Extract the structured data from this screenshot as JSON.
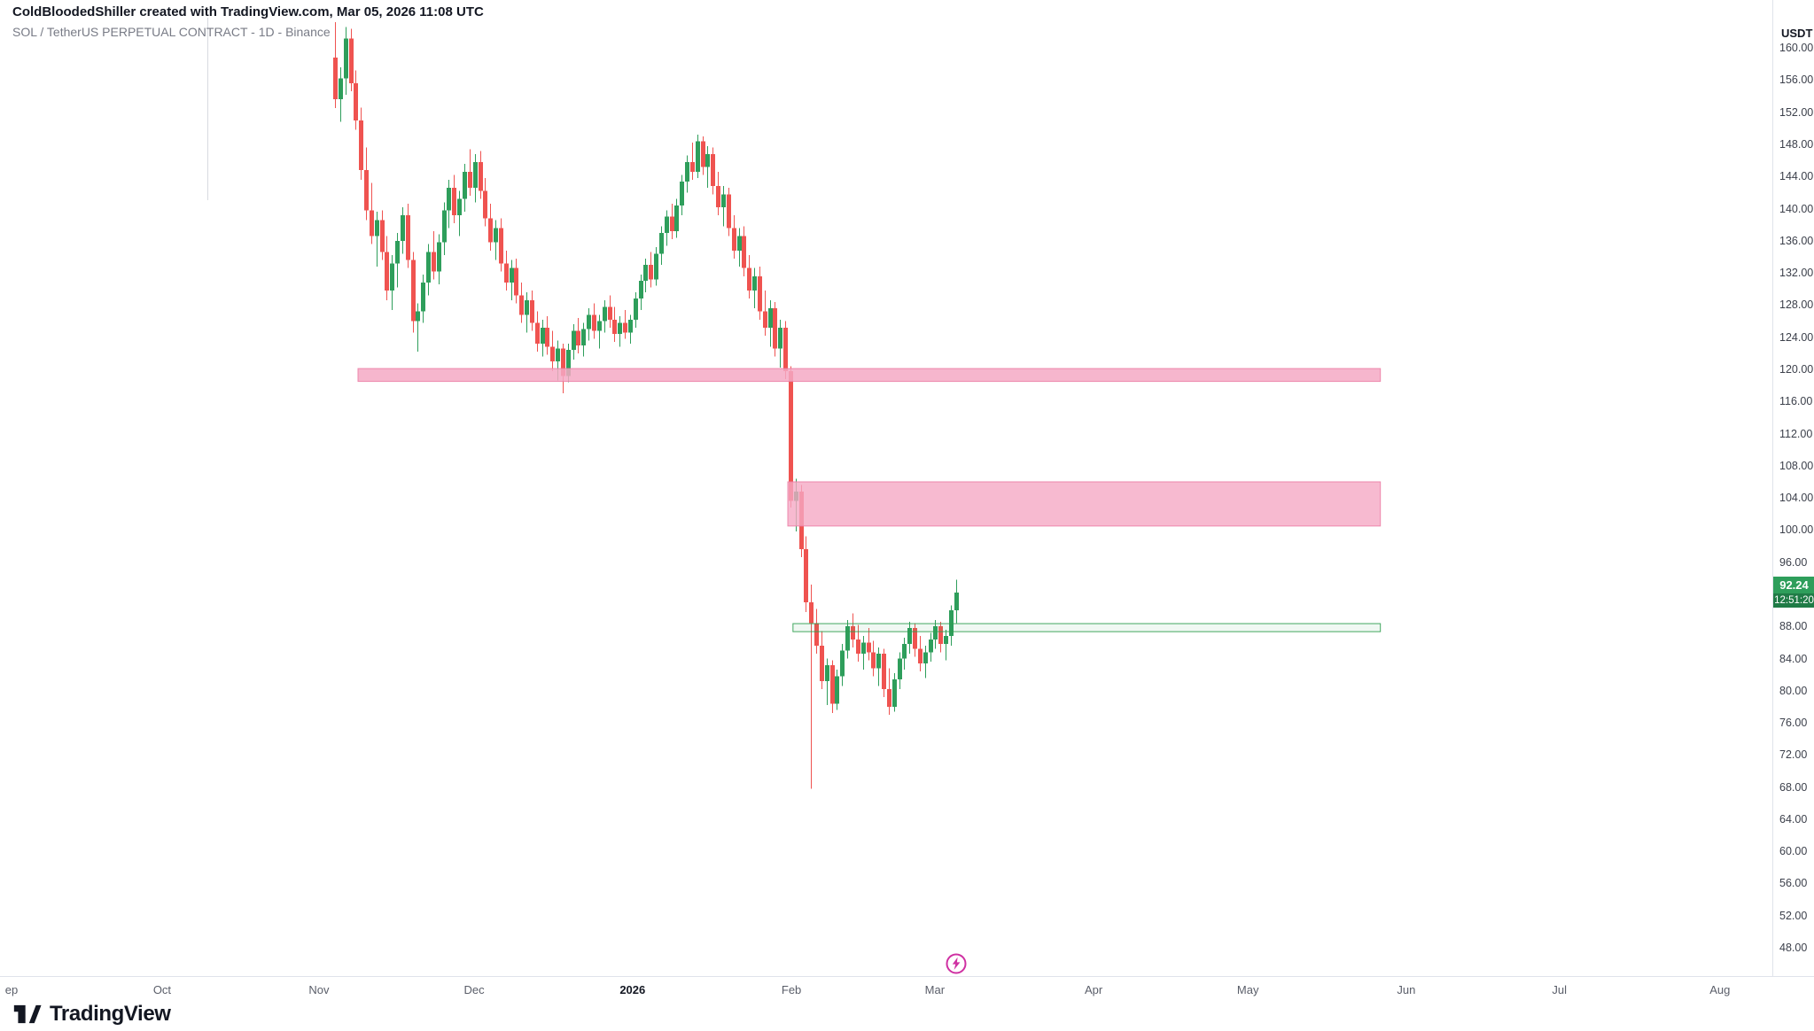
{
  "header": {
    "attribution": "ColdBloodedShiller created with TradingView.com, Mar 05, 2026 11:08 UTC",
    "symbol_description": "SOL / TetherUS PERPETUAL CONTRACT - 1D - Binance"
  },
  "price_axis": {
    "currency_label": "USDT",
    "ticks": [
      160,
      156,
      152,
      148,
      144,
      140,
      136,
      132,
      128,
      124,
      120,
      116,
      112,
      108,
      104,
      100,
      96,
      92,
      88,
      84,
      80,
      76,
      72,
      68,
      64,
      60,
      56,
      52,
      48
    ]
  },
  "time_axis": {
    "labels": [
      {
        "text": "ep",
        "index": -62.5
      },
      {
        "text": "Oct",
        "index": -33.4
      },
      {
        "text": "Nov",
        "index": -3.1
      },
      {
        "text": "Dec",
        "index": 26.9
      },
      {
        "text": "2026",
        "index": 57.5,
        "year": true
      },
      {
        "text": "Feb",
        "index": 88.2
      },
      {
        "text": "Mar",
        "index": 115.9
      },
      {
        "text": "Apr",
        "index": 146.6
      },
      {
        "text": "May",
        "index": 176.4
      },
      {
        "text": "Jun",
        "index": 207.0
      },
      {
        "text": "Jul",
        "index": 236.6
      },
      {
        "text": "Aug",
        "index": 267.6
      }
    ]
  },
  "last_price": {
    "value": "92.24",
    "countdown": "12:51:20",
    "value_bg": "#2e9e5b",
    "countdown_bg": "#1f7b46"
  },
  "footer": {
    "logo_text": "TradingView"
  },
  "chart_data": {
    "type": "candlestick",
    "title": "SOL / TetherUS PERPETUAL CONTRACT",
    "timeframe": "1D",
    "exchange": "Binance",
    "quote_currency": "USDT",
    "ylim": [
      46,
      164
    ],
    "grid": false,
    "up_color": "#2e9e5b",
    "down_color": "#ef5350",
    "last_close": 92.24,
    "candles": [
      [
        158.8,
        163.2,
        152.5,
        153.6
      ],
      [
        153.6,
        157.6,
        150.8,
        156.2
      ],
      [
        156.2,
        162.6,
        154.2,
        161.2
      ],
      [
        161.2,
        162.4,
        154.6,
        155.6
      ],
      [
        155.6,
        157.2,
        149.8,
        151.0
      ],
      [
        151.0,
        152.6,
        143.6,
        144.8
      ],
      [
        144.8,
        147.6,
        138.6,
        139.8
      ],
      [
        139.8,
        143.2,
        135.6,
        136.6
      ],
      [
        136.6,
        139.6,
        132.8,
        138.6
      ],
      [
        138.6,
        139.8,
        133.6,
        134.6
      ],
      [
        134.6,
        136.6,
        128.6,
        129.8
      ],
      [
        129.8,
        134.2,
        127.4,
        133.2
      ],
      [
        133.2,
        137.0,
        130.2,
        136.0
      ],
      [
        136.0,
        140.2,
        134.4,
        139.2
      ],
      [
        139.2,
        140.6,
        132.6,
        133.6
      ],
      [
        133.6,
        134.6,
        124.6,
        126.0
      ],
      [
        126.0,
        128.2,
        122.2,
        127.2
      ],
      [
        127.2,
        131.8,
        125.8,
        130.8
      ],
      [
        130.8,
        135.6,
        129.2,
        134.6
      ],
      [
        134.6,
        137.2,
        131.2,
        132.2
      ],
      [
        132.2,
        136.8,
        130.6,
        135.8
      ],
      [
        135.8,
        140.8,
        134.2,
        139.8
      ],
      [
        139.8,
        143.6,
        137.6,
        142.6
      ],
      [
        142.6,
        144.2,
        138.2,
        139.2
      ],
      [
        139.2,
        142.2,
        136.6,
        141.2
      ],
      [
        141.2,
        145.6,
        139.6,
        144.6
      ],
      [
        144.6,
        147.4,
        141.6,
        142.6
      ],
      [
        142.6,
        146.8,
        140.8,
        145.8
      ],
      [
        145.8,
        147.2,
        141.2,
        142.2
      ],
      [
        142.2,
        143.8,
        137.8,
        138.8
      ],
      [
        138.8,
        140.6,
        134.8,
        135.8
      ],
      [
        135.8,
        138.6,
        133.6,
        137.6
      ],
      [
        137.6,
        138.8,
        132.2,
        133.2
      ],
      [
        133.2,
        134.8,
        129.8,
        130.8
      ],
      [
        130.8,
        133.6,
        128.6,
        132.6
      ],
      [
        132.6,
        133.8,
        128.2,
        129.2
      ],
      [
        129.2,
        130.8,
        125.8,
        126.8
      ],
      [
        126.8,
        129.6,
        124.6,
        128.6
      ],
      [
        128.6,
        129.8,
        124.8,
        125.8
      ],
      [
        125.8,
        127.2,
        122.2,
        123.2
      ],
      [
        123.2,
        126.2,
        121.6,
        125.2
      ],
      [
        125.2,
        126.6,
        121.8,
        122.8
      ],
      [
        122.8,
        124.8,
        119.8,
        121.0
      ],
      [
        121.0,
        123.6,
        118.6,
        122.6
      ],
      [
        122.6,
        123.2,
        117.0,
        119.2
      ],
      [
        119.2,
        123.2,
        118.4,
        122.4
      ],
      [
        122.4,
        125.6,
        121.2,
        124.8
      ],
      [
        124.8,
        126.4,
        122.0,
        123.0
      ],
      [
        123.0,
        125.8,
        121.6,
        125.0
      ],
      [
        125.0,
        127.6,
        123.6,
        126.8
      ],
      [
        126.8,
        128.2,
        123.8,
        124.8
      ],
      [
        124.8,
        126.8,
        122.6,
        126.0
      ],
      [
        126.0,
        128.6,
        124.6,
        127.8
      ],
      [
        127.8,
        129.2,
        125.2,
        126.2
      ],
      [
        126.2,
        127.8,
        123.4,
        124.4
      ],
      [
        124.4,
        126.6,
        122.8,
        125.8
      ],
      [
        125.8,
        127.4,
        123.8,
        124.6
      ],
      [
        124.6,
        126.8,
        123.2,
        126.2
      ],
      [
        126.2,
        129.6,
        125.2,
        128.8
      ],
      [
        128.8,
        131.8,
        127.4,
        131.0
      ],
      [
        131.0,
        133.8,
        129.6,
        133.0
      ],
      [
        133.0,
        134.6,
        130.2,
        131.2
      ],
      [
        131.2,
        135.2,
        130.4,
        134.4
      ],
      [
        134.4,
        137.8,
        133.0,
        137.0
      ],
      [
        137.0,
        139.8,
        135.4,
        139.0
      ],
      [
        139.0,
        140.6,
        136.2,
        137.2
      ],
      [
        137.2,
        141.2,
        136.4,
        140.4
      ],
      [
        140.4,
        144.2,
        139.2,
        143.4
      ],
      [
        143.4,
        146.6,
        142.0,
        145.8
      ],
      [
        145.8,
        148.2,
        143.6,
        144.6
      ],
      [
        144.6,
        149.2,
        143.8,
        148.4
      ],
      [
        148.4,
        149.0,
        144.2,
        145.2
      ],
      [
        145.2,
        147.8,
        142.6,
        146.8
      ],
      [
        146.8,
        147.6,
        141.8,
        142.8
      ],
      [
        142.8,
        144.6,
        139.2,
        140.2
      ],
      [
        140.2,
        142.8,
        137.8,
        141.8
      ],
      [
        141.8,
        142.6,
        136.6,
        137.6
      ],
      [
        137.6,
        139.2,
        133.8,
        134.8
      ],
      [
        134.8,
        137.6,
        132.8,
        136.6
      ],
      [
        136.6,
        137.8,
        131.6,
        132.6
      ],
      [
        132.6,
        134.2,
        128.8,
        129.8
      ],
      [
        129.8,
        132.6,
        127.6,
        131.6
      ],
      [
        131.6,
        132.8,
        126.2,
        127.2
      ],
      [
        127.2,
        129.8,
        124.2,
        125.2
      ],
      [
        125.2,
        128.6,
        122.8,
        127.6
      ],
      [
        127.6,
        128.4,
        121.6,
        122.6
      ],
      [
        122.6,
        126.2,
        120.2,
        125.2
      ],
      [
        125.2,
        126.0,
        118.8,
        119.8
      ],
      [
        119.8,
        120.4,
        102.8,
        103.6
      ],
      [
        103.6,
        106.4,
        99.8,
        104.8
      ],
      [
        104.8,
        105.6,
        96.6,
        97.6
      ],
      [
        97.6,
        99.2,
        89.8,
        91.0
      ],
      [
        91.0,
        93.2,
        67.8,
        88.4
      ],
      [
        88.4,
        90.2,
        84.6,
        85.6
      ],
      [
        85.6,
        87.4,
        80.2,
        81.2
      ],
      [
        81.2,
        84.0,
        78.2,
        83.2
      ],
      [
        83.2,
        83.8,
        77.2,
        78.4
      ],
      [
        78.4,
        82.6,
        77.6,
        81.8
      ],
      [
        81.8,
        85.8,
        80.6,
        85.0
      ],
      [
        85.0,
        88.8,
        84.0,
        88.0
      ],
      [
        88.0,
        89.6,
        85.4,
        86.4
      ],
      [
        86.4,
        88.2,
        83.6,
        84.6
      ],
      [
        84.6,
        86.8,
        82.6,
        86.0
      ],
      [
        86.0,
        87.8,
        83.8,
        84.8
      ],
      [
        84.8,
        86.2,
        81.8,
        82.8
      ],
      [
        82.8,
        85.4,
        80.6,
        84.6
      ],
      [
        84.6,
        85.2,
        79.2,
        80.2
      ],
      [
        80.2,
        82.8,
        77.0,
        78.0
      ],
      [
        78.0,
        82.2,
        77.4,
        81.4
      ],
      [
        81.4,
        84.8,
        80.2,
        84.0
      ],
      [
        84.0,
        86.6,
        82.6,
        85.8
      ],
      [
        85.8,
        88.6,
        84.6,
        87.8
      ],
      [
        87.8,
        88.4,
        84.2,
        85.2
      ],
      [
        85.2,
        86.8,
        82.4,
        83.4
      ],
      [
        83.4,
        85.6,
        81.6,
        84.8
      ],
      [
        84.8,
        87.2,
        83.6,
        86.4
      ],
      [
        86.4,
        88.8,
        85.2,
        88.0
      ],
      [
        88.0,
        88.6,
        84.8,
        85.8
      ],
      [
        85.8,
        87.6,
        83.8,
        86.8
      ],
      [
        86.8,
        90.6,
        85.6,
        90.0
      ],
      [
        90.0,
        93.8,
        88.4,
        92.24
      ]
    ],
    "zones": [
      {
        "name": "resistance-zone-119",
        "price_top": 120.1,
        "price_bottom": 118.5,
        "from_index": 4.45,
        "to_index": 202,
        "fill": "#f5a9c4",
        "fill_opacity": 0.85,
        "border": "#ec7fa6",
        "border_opacity": 0.9
      },
      {
        "name": "supply-zone-100-106",
        "price_top": 106.0,
        "price_bottom": 100.5,
        "from_index": 87.5,
        "to_index": 202,
        "fill": "#f5a9c4",
        "fill_opacity": 0.8,
        "border": "#ec7fa6",
        "border_opacity": 0.9
      },
      {
        "name": "support-level-88",
        "price_top": 88.35,
        "price_bottom": 87.35,
        "from_index": 88.5,
        "to_index": 202,
        "fill": "#2f9e4f",
        "fill_opacity": 0.07,
        "border": "#2f9e4f",
        "border_opacity": 0.9
      }
    ],
    "marker": {
      "index": 120,
      "color": "#cf30a2"
    }
  }
}
